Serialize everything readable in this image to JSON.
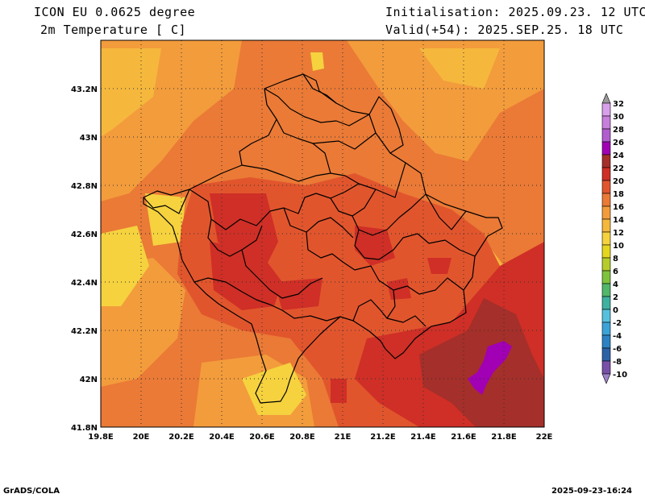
{
  "header": {
    "model": "ICON EU 0.0625 degree",
    "variable": "2m Temperature [ C]",
    "init": "Initialisation: 2025.09.23. 12 UTC",
    "valid": "Valid(+54): 2025.SEP.25. 18 UTC"
  },
  "axes": {
    "x_ticks": [
      "19.8E",
      "20E",
      "20.2E",
      "20.4E",
      "20.6E",
      "20.8E",
      "21E",
      "21.2E",
      "21.4E",
      "21.6E",
      "21.8E",
      "22E"
    ],
    "y_ticks": [
      "43.2N",
      "43N",
      "42.8N",
      "42.6N",
      "42.4N",
      "42.2N",
      "42N",
      "41.8N"
    ]
  },
  "colorbar": {
    "labels": [
      "32",
      "30",
      "28",
      "26",
      "24",
      "22",
      "20",
      "18",
      "16",
      "14",
      "12",
      "10",
      "8",
      "6",
      "4",
      "2",
      "0",
      "-2",
      "-4",
      "-6",
      "-8",
      "-10"
    ],
    "colors": [
      "#d9a0ea",
      "#c77fdc",
      "#b25dcf",
      "#a100b5",
      "#a52f2a",
      "#cf2f26",
      "#e1552d",
      "#ea7a36",
      "#f39c3c",
      "#f5b83d",
      "#f5d23e",
      "#e4d61f",
      "#b5cc2c",
      "#80c23d",
      "#52b76b",
      "#3fb1a0",
      "#57c1dd",
      "#3ca3d8",
      "#2e82c3",
      "#2d62a6",
      "#7950a8"
    ],
    "above_color": "#9a9a9a",
    "below_color": "#9d82c8"
  },
  "footer": {
    "left": "GrADS/COLA",
    "right": "2025-09-23-16:24"
  }
}
